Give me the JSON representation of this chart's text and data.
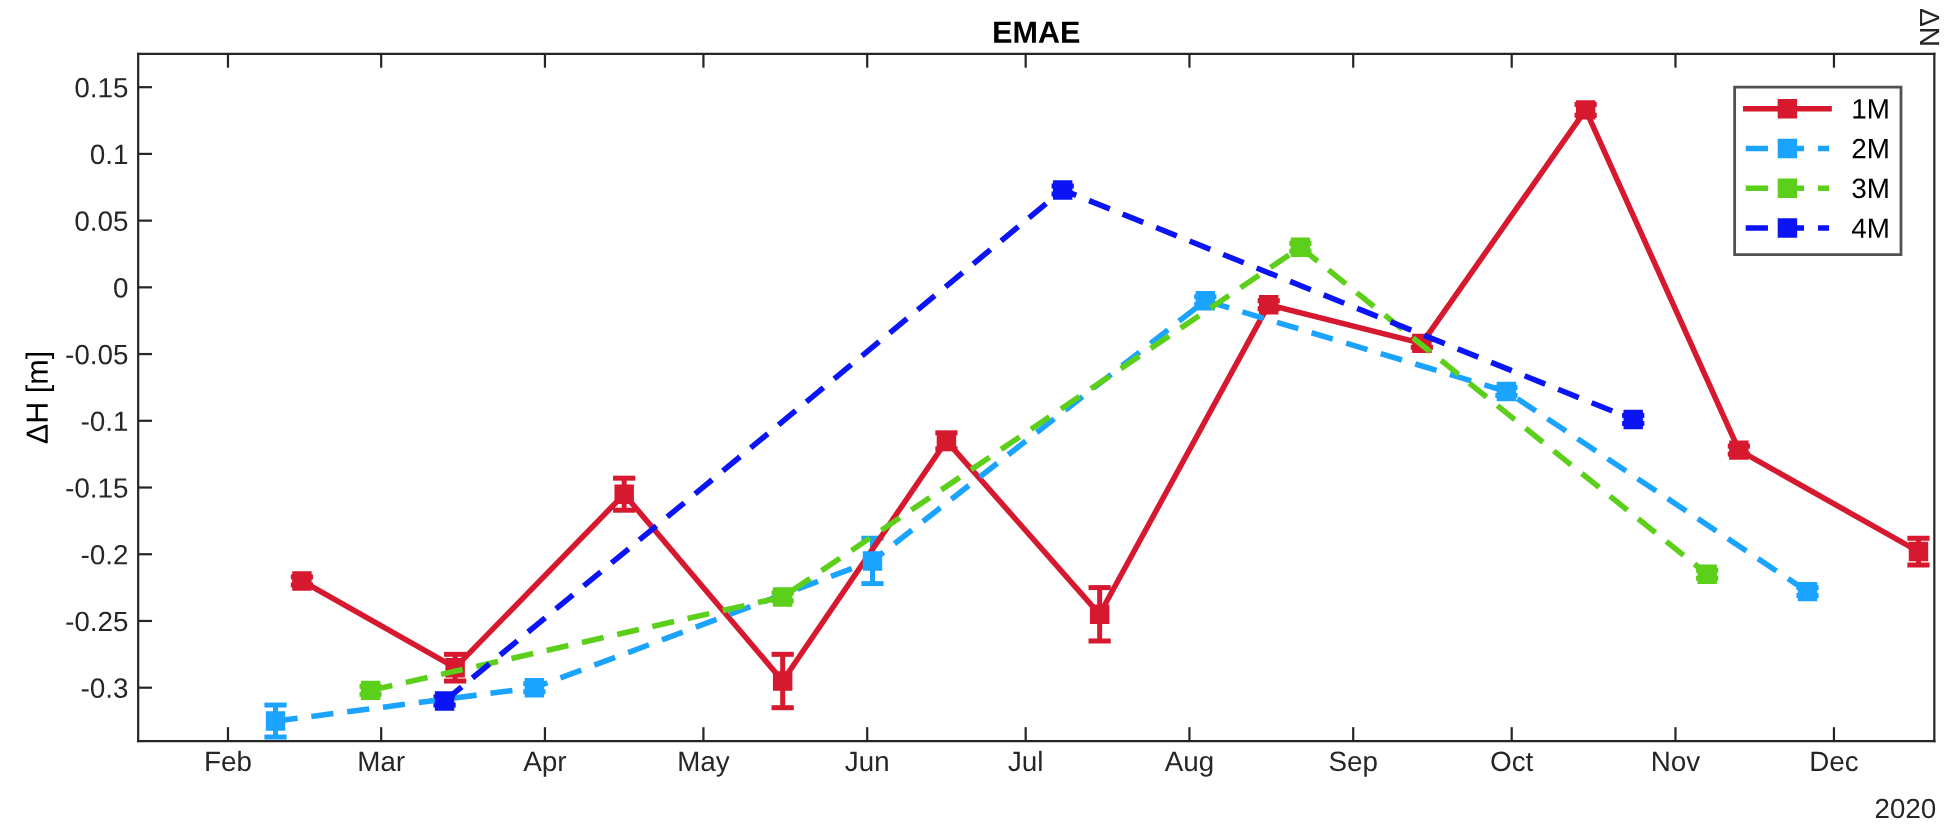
{
  "chart_data": {
    "type": "line",
    "title": "EMAE",
    "ylabel": "ΔH [m]",
    "annotations": [
      "2020",
      "ΔN"
    ],
    "xlim": [
      "2020-01-15",
      "2020-12-20"
    ],
    "ylim": [
      -0.34,
      0.175
    ],
    "xticks": [
      {
        "value": "2020-02-01",
        "label": "Feb"
      },
      {
        "value": "2020-03-01",
        "label": "Mar"
      },
      {
        "value": "2020-04-01",
        "label": "Apr"
      },
      {
        "value": "2020-05-01",
        "label": "May"
      },
      {
        "value": "2020-06-01",
        "label": "Jun"
      },
      {
        "value": "2020-07-01",
        "label": "Jul"
      },
      {
        "value": "2020-08-01",
        "label": "Aug"
      },
      {
        "value": "2020-09-01",
        "label": "Sep"
      },
      {
        "value": "2020-10-01",
        "label": "Oct"
      },
      {
        "value": "2020-11-01",
        "label": "Nov"
      },
      {
        "value": "2020-12-01",
        "label": "Dec"
      }
    ],
    "yticks": [
      -0.3,
      -0.25,
      -0.2,
      -0.15,
      -0.1,
      -0.05,
      0,
      0.05,
      0.1,
      0.15
    ],
    "grid": false,
    "legend": "top right",
    "marker": "square",
    "series": [
      {
        "name": "1M",
        "color": "#d7192f",
        "line_style": "solid",
        "x": [
          "2020-02-15",
          "2020-03-15",
          "2020-04-16",
          "2020-05-16",
          "2020-06-16",
          "2020-07-15",
          "2020-08-16",
          "2020-09-14",
          "2020-10-15",
          "2020-11-13",
          "2020-12-17"
        ],
        "values": [
          -0.22,
          -0.285,
          -0.155,
          -0.295,
          -0.115,
          -0.245,
          -0.013,
          -0.042,
          0.133,
          -0.122,
          -0.198
        ],
        "errors": [
          0.003,
          0.01,
          0.012,
          0.02,
          0.006,
          0.02,
          0.003,
          0.003,
          0.004,
          0.003,
          0.01
        ]
      },
      {
        "name": "2M",
        "color": "#1aa3ff",
        "line_style": "dashed",
        "x": [
          "2020-02-10",
          "2020-03-30",
          "2020-06-02",
          "2020-08-04",
          "2020-09-30",
          "2020-11-26"
        ],
        "values": [
          -0.325,
          -0.3,
          -0.205,
          -0.01,
          -0.078,
          -0.228
        ],
        "errors": [
          0.012,
          0.003,
          0.017,
          0.003,
          0.003,
          0.003
        ]
      },
      {
        "name": "3M",
        "color": "#5ccf1a",
        "line_style": "dashed",
        "x": [
          "2020-02-28",
          "2020-05-16",
          "2020-08-22",
          "2020-11-07"
        ],
        "values": [
          -0.302,
          -0.232,
          0.03,
          -0.215
        ],
        "errors": [
          0.003,
          0.003,
          0.003,
          0.003
        ]
      },
      {
        "name": "4M",
        "color": "#0a14f5",
        "line_style": "dashed",
        "x": [
          "2020-03-13",
          "2020-07-08",
          "2020-10-24"
        ],
        "values": [
          -0.31,
          0.073,
          -0.099
        ],
        "errors": [
          0.003,
          0.003,
          0.003
        ]
      }
    ]
  }
}
